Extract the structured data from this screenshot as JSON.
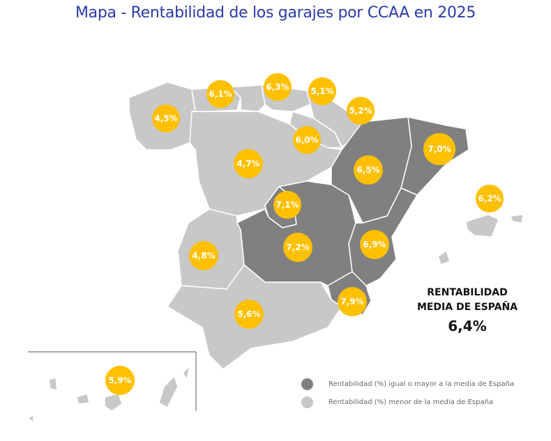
{
  "title": "Mapa - Rentabilidad de los garajes por CCAA en 2025",
  "colors": {
    "above_average": "#808080",
    "below_average": "#c8c8c8",
    "bubble": "#ffc000",
    "title": "#2a3aa8"
  },
  "regions": [
    {
      "name": "Galicia",
      "value": "4,5%",
      "category": "below"
    },
    {
      "name": "Asturias",
      "value": "6,1%",
      "category": "below"
    },
    {
      "name": "Cantabria",
      "value": "6,3%",
      "category": "below"
    },
    {
      "name": "País Vasco",
      "value": "5,1%",
      "category": "below"
    },
    {
      "name": "Navarra",
      "value": "5,2%",
      "category": "below"
    },
    {
      "name": "La Rioja",
      "value": "6,0%",
      "category": "below"
    },
    {
      "name": "Castilla y León",
      "value": "4,7%",
      "category": "below"
    },
    {
      "name": "Cataluña",
      "value": "7,0%",
      "category": "above"
    },
    {
      "name": "Aragón",
      "value": "6,5%",
      "category": "above"
    },
    {
      "name": "Madrid",
      "value": "7,1%",
      "category": "above"
    },
    {
      "name": "Castilla-La Mancha",
      "value": "7,2%",
      "category": "above"
    },
    {
      "name": "Comunidad Valenciana",
      "value": "6,9%",
      "category": "above"
    },
    {
      "name": "Extremadura",
      "value": "4,8%",
      "category": "below"
    },
    {
      "name": "Andalucía",
      "value": "5,6%",
      "category": "below"
    },
    {
      "name": "Murcia",
      "value": "7,9%",
      "category": "above"
    },
    {
      "name": "Baleares",
      "value": "6,2%",
      "category": "below"
    },
    {
      "name": "Canarias",
      "value": "5,9%",
      "category": "below"
    }
  ],
  "summary": {
    "line1": "RENTABILIDAD",
    "line2": "MEDIA DE ESPAÑA",
    "value": "6,4%"
  },
  "legend": [
    {
      "label": "Rentabilidad (%) igual o mayor a la media de España",
      "category": "above"
    },
    {
      "label": "Rentabilidad (%) menor de la media de España",
      "category": "below"
    }
  ]
}
